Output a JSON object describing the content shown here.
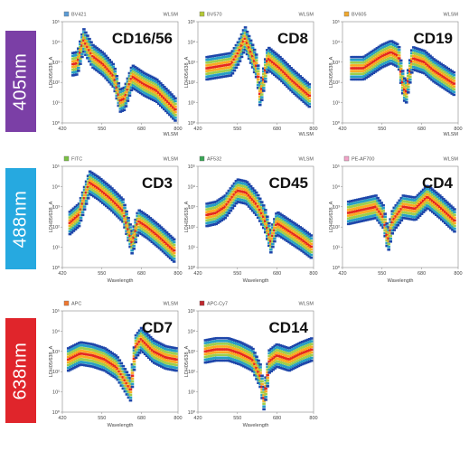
{
  "lasers": [
    {
      "label": "405nm",
      "color": "#7b3fa6"
    },
    {
      "label": "488nm",
      "color": "#26a9e0"
    },
    {
      "label": "638nm",
      "color": "#e0252b"
    }
  ],
  "common": {
    "x_ticks": [
      "420",
      "550",
      "680",
      "800"
    ],
    "y_ticks": [
      "10⁵",
      "10⁴",
      "10³",
      "10²",
      "10¹",
      "10⁰"
    ],
    "ylabel": "LDH05/638_A",
    "xlabel": "Wavelength",
    "corner_label": "WLSM"
  },
  "chart_data": [
    {
      "type": "heatmap",
      "title": "CD16/56",
      "legend": "BV421",
      "legend_color": "#5b9bd5",
      "laser": "405nm",
      "xlabel": "",
      "x_tick_label_bottom_right": "WLSM",
      "xlim": [
        420,
        800
      ],
      "ylim_log10": [
        0,
        5
      ],
      "profile": [
        [
          455,
          2.9
        ],
        [
          470,
          2.95
        ],
        [
          490,
          4.1
        ],
        [
          520,
          3.3
        ],
        [
          555,
          2.9
        ],
        [
          590,
          2.3
        ],
        [
          610,
          1.1
        ],
        [
          625,
          1.2
        ],
        [
          650,
          2.3
        ],
        [
          690,
          1.9
        ],
        [
          730,
          1.6
        ],
        [
          770,
          1.0
        ],
        [
          795,
          0.6
        ]
      ]
    },
    {
      "type": "heatmap",
      "title": "CD8",
      "legend": "BV570",
      "legend_color": "#b5c936",
      "laser": "405nm",
      "xlabel": "",
      "x_tick_label_bottom_right": "WLSM",
      "xlim": [
        420,
        800
      ],
      "ylim_log10": [
        0,
        5
      ],
      "profile": [
        [
          450,
          2.7
        ],
        [
          490,
          2.8
        ],
        [
          530,
          2.9
        ],
        [
          555,
          3.5
        ],
        [
          575,
          4.2
        ],
        [
          600,
          3.3
        ],
        [
          615,
          2.7
        ],
        [
          625,
          1.3
        ],
        [
          650,
          3.2
        ],
        [
          690,
          2.7
        ],
        [
          730,
          2.1
        ],
        [
          760,
          1.7
        ],
        [
          790,
          1.3
        ]
      ]
    },
    {
      "type": "heatmap",
      "title": "CD19",
      "legend": "BV605",
      "legend_color": "#f0a830",
      "laser": "405nm",
      "xlabel": "",
      "x_tick_label_bottom_right": "WLSM",
      "xlim": [
        420,
        800
      ],
      "ylim_log10": [
        0,
        5
      ],
      "profile": [
        [
          450,
          2.7
        ],
        [
          490,
          2.7
        ],
        [
          520,
          3.0
        ],
        [
          550,
          3.3
        ],
        [
          580,
          3.5
        ],
        [
          605,
          3.3
        ],
        [
          615,
          2.2
        ],
        [
          628,
          1.4
        ],
        [
          650,
          3.2
        ],
        [
          690,
          3.0
        ],
        [
          720,
          2.6
        ],
        [
          750,
          2.3
        ],
        [
          790,
          1.9
        ]
      ]
    },
    {
      "type": "heatmap",
      "title": "CD3",
      "legend": "FITC",
      "legend_color": "#7ac143",
      "laser": "488nm",
      "xlabel": "Wavelength",
      "xlim": [
        420,
        800
      ],
      "ylim_log10": [
        0,
        5
      ],
      "profile": [
        [
          445,
          2.2
        ],
        [
          475,
          2.6
        ],
        [
          510,
          4.2
        ],
        [
          540,
          3.9
        ],
        [
          580,
          3.4
        ],
        [
          620,
          2.8
        ],
        [
          650,
          1.2
        ],
        [
          670,
          2.3
        ],
        [
          700,
          2.0
        ],
        [
          740,
          1.5
        ],
        [
          790,
          0.8
        ]
      ]
    },
    {
      "type": "heatmap",
      "title": "CD45",
      "legend": "AF532",
      "legend_color": "#3aa655",
      "laser": "488nm",
      "xlabel": "Wavelength",
      "xlim": [
        420,
        800
      ],
      "ylim_log10": [
        0,
        5
      ],
      "profile": [
        [
          450,
          2.6
        ],
        [
          480,
          2.7
        ],
        [
          510,
          3.0
        ],
        [
          550,
          3.8
        ],
        [
          580,
          3.7
        ],
        [
          615,
          3.1
        ],
        [
          640,
          2.4
        ],
        [
          660,
          1.3
        ],
        [
          680,
          2.2
        ],
        [
          720,
          1.8
        ],
        [
          760,
          1.4
        ],
        [
          795,
          1.0
        ]
      ]
    },
    {
      "type": "heatmap",
      "title": "CD4",
      "legend": "PE-AF700",
      "legend_color": "#f2a3c8",
      "laser": "488nm",
      "xlabel": "Wavelength",
      "xlim": [
        420,
        800
      ],
      "ylim_log10": [
        0,
        5
      ],
      "profile": [
        [
          440,
          2.7
        ],
        [
          470,
          2.8
        ],
        [
          500,
          2.9
        ],
        [
          530,
          3.0
        ],
        [
          555,
          2.5
        ],
        [
          570,
          1.3
        ],
        [
          585,
          2.3
        ],
        [
          620,
          3.0
        ],
        [
          660,
          2.9
        ],
        [
          700,
          3.5
        ],
        [
          740,
          3.0
        ],
        [
          790,
          2.3
        ]
      ]
    },
    {
      "type": "heatmap",
      "title": "CD7",
      "legend": "APC",
      "legend_color": "#f07830",
      "laser": "638nm",
      "xlabel": "Wavelength",
      "xlim": [
        420,
        800
      ],
      "ylim_log10": [
        0,
        5
      ],
      "profile": [
        [
          440,
          2.6
        ],
        [
          480,
          2.9
        ],
        [
          520,
          2.8
        ],
        [
          560,
          2.6
        ],
        [
          600,
          2.2
        ],
        [
          625,
          1.6
        ],
        [
          645,
          1.1
        ],
        [
          660,
          3.2
        ],
        [
          680,
          3.6
        ],
        [
          720,
          3.0
        ],
        [
          760,
          2.7
        ],
        [
          795,
          2.6
        ]
      ]
    },
    {
      "type": "heatmap",
      "title": "CD14",
      "legend": "APC-Cy7",
      "legend_color": "#c0282d",
      "laser": "638nm",
      "xlabel": "Wavelength",
      "xlim": [
        420,
        800
      ],
      "ylim_log10": [
        0,
        5
      ],
      "profile": [
        [
          445,
          3.0
        ],
        [
          480,
          3.1
        ],
        [
          520,
          3.1
        ],
        [
          560,
          2.9
        ],
        [
          600,
          2.6
        ],
        [
          625,
          1.8
        ],
        [
          638,
          0.6
        ],
        [
          655,
          2.5
        ],
        [
          680,
          2.8
        ],
        [
          720,
          2.6
        ],
        [
          760,
          2.9
        ],
        [
          795,
          3.1
        ]
      ]
    }
  ]
}
